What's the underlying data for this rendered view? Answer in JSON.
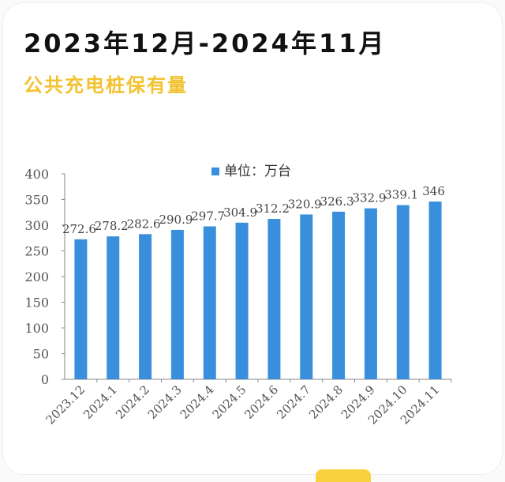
{
  "header": {
    "title": "2023年12月-2024年11月",
    "subtitle": "公共充电桩保有量"
  },
  "colors": {
    "bar": "#3a8fdc",
    "title": "#111111",
    "subtitle": "#f2c230",
    "axis": "#888888",
    "tick_text": "#555555",
    "data_label": "#444444"
  },
  "chart_data": {
    "type": "bar",
    "categories": [
      "2023.12",
      "2024.1",
      "2024.2",
      "2024.3",
      "2024.4",
      "2024.5",
      "2024.6",
      "2024.7",
      "2024.8",
      "2024.9",
      "2024.10",
      "2024.11"
    ],
    "series": [
      {
        "name": "单位：万台",
        "values": [
          272.6,
          278.2,
          282.6,
          290.9,
          297.7,
          304.9,
          312.2,
          320.9,
          326.3,
          332.9,
          339.1,
          346
        ]
      }
    ],
    "data_labels": [
      "272.6",
      "278.2",
      "282.6",
      "290.9",
      "297.7",
      "304.9",
      "312.2",
      "320.9",
      "326.3",
      "332.9",
      "339.1",
      "346"
    ],
    "ylim": [
      0,
      400
    ],
    "yticks": [
      0,
      50,
      100,
      150,
      200,
      250,
      300,
      350,
      400
    ],
    "legend": {
      "label": "单位：万台",
      "position": "top-center"
    },
    "grid": false
  }
}
